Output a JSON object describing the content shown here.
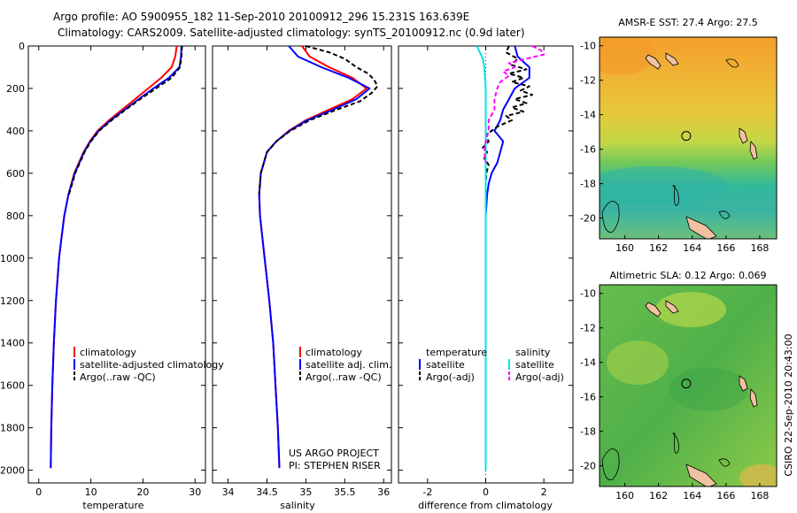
{
  "header": {
    "line1": "Argo profile: AO 5900955_182 11-Sep-2010 20100912_296 15.231S 163.639E",
    "line2": "Climatology: CARS2009. Satellite-adjusted climatology: synTS_20100912.nc (0.9d later)"
  },
  "side_label": "CSIRO 22-Sep-2010 20:43:00",
  "credits": {
    "line1": "US ARGO PROJECT",
    "line2": "PI: STEPHEN RISER"
  },
  "colors": {
    "climatology": "#ff0000",
    "satellite": "#0000ff",
    "argo": "#000000",
    "sat_salt": "#00e5e5",
    "argo_salt": "#ff00ff"
  },
  "chart_data": [
    {
      "id": "temperature",
      "type": "line",
      "xlabel": "temperature",
      "ylabel": "",
      "xlim": [
        -2,
        32
      ],
      "ylim": [
        2060,
        0
      ],
      "xticks": [
        0,
        10,
        20,
        30
      ],
      "yticks": [
        0,
        200,
        400,
        600,
        800,
        1000,
        1200,
        1400,
        1600,
        1800,
        2000
      ],
      "legend": [
        "climatology",
        "satellite-adjusted climatology",
        "Argo(..raw -QC)"
      ],
      "series": [
        {
          "name": "climatology",
          "color": "#ff0000",
          "dash": "",
          "depth": [
            0,
            50,
            100,
            150,
            200,
            250,
            300,
            350,
            400,
            450,
            500,
            600,
            700,
            800,
            900,
            1000,
            1200,
            1400,
            1600,
            1800,
            1990
          ],
          "values": [
            26.5,
            26.2,
            25.5,
            23.5,
            21.0,
            18.5,
            16.0,
            13.5,
            11.3,
            9.8,
            8.6,
            6.8,
            5.7,
            4.9,
            4.4,
            3.9,
            3.3,
            2.9,
            2.6,
            2.4,
            2.3
          ]
        },
        {
          "name": "satellite-adjusted climatology",
          "color": "#0000ff",
          "dash": "",
          "depth": [
            0,
            50,
            100,
            150,
            200,
            250,
            300,
            350,
            400,
            450,
            500,
            600,
            700,
            800,
            900,
            1000,
            1200,
            1400,
            1600,
            1800,
            1990
          ],
          "values": [
            27.4,
            27.3,
            27.0,
            25.0,
            22.0,
            19.2,
            16.5,
            13.8,
            11.5,
            9.9,
            8.7,
            6.9,
            5.7,
            4.9,
            4.4,
            3.9,
            3.3,
            2.9,
            2.6,
            2.4,
            2.3
          ]
        },
        {
          "name": "Argo(..raw -QC)",
          "color": "#000000",
          "dash": "5,3",
          "depth": [
            0,
            50,
            100,
            150,
            200,
            250,
            300,
            350,
            400,
            450,
            500,
            600,
            700
          ],
          "values": [
            27.5,
            27.4,
            27.1,
            25.5,
            22.5,
            19.5,
            16.7,
            14.0,
            11.6,
            10.0,
            8.8,
            7.0,
            5.8
          ]
        }
      ]
    },
    {
      "id": "salinity",
      "type": "line",
      "xlabel": "salinity",
      "ylabel": "",
      "xlim": [
        33.8,
        36.1
      ],
      "ylim": [
        2060,
        0
      ],
      "xticks": [
        34,
        34.5,
        35,
        35.5,
        36
      ],
      "yticks": [],
      "legend": [
        "climatology",
        "satellite adj. clim.",
        "Argo(..raw -QC)"
      ],
      "series": [
        {
          "name": "climatology",
          "color": "#ff0000",
          "dash": "",
          "depth": [
            0,
            50,
            100,
            150,
            200,
            250,
            300,
            350,
            400,
            450,
            500,
            600,
            700,
            800,
            900,
            1000,
            1200,
            1400,
            1600,
            1800,
            1990
          ],
          "values": [
            34.95,
            35.05,
            35.3,
            35.6,
            35.78,
            35.6,
            35.3,
            35.0,
            34.78,
            34.62,
            34.5,
            34.42,
            34.4,
            34.41,
            34.44,
            34.47,
            34.53,
            34.58,
            34.61,
            34.64,
            34.66
          ]
        },
        {
          "name": "satellite adj. clim.",
          "color": "#0000ff",
          "dash": "",
          "depth": [
            0,
            50,
            100,
            150,
            200,
            250,
            300,
            350,
            400,
            450,
            500,
            600,
            700,
            800,
            900,
            1000,
            1200,
            1400,
            1600,
            1800,
            1990
          ],
          "values": [
            34.78,
            34.9,
            35.2,
            35.55,
            35.82,
            35.65,
            35.35,
            35.02,
            34.79,
            34.62,
            34.5,
            34.42,
            34.4,
            34.41,
            34.44,
            34.47,
            34.53,
            34.58,
            34.61,
            34.64,
            34.66
          ]
        },
        {
          "name": "Argo(..raw -QC)",
          "color": "#000000",
          "dash": "5,3",
          "depth": [
            0,
            30,
            60,
            100,
            130,
            160,
            190,
            220,
            260,
            300,
            350,
            400,
            450,
            500,
            600,
            700
          ],
          "values": [
            35.0,
            35.3,
            35.5,
            35.65,
            35.8,
            35.88,
            35.92,
            35.85,
            35.7,
            35.4,
            35.05,
            34.8,
            34.62,
            34.5,
            34.42,
            34.4
          ]
        }
      ]
    },
    {
      "id": "difference",
      "type": "line",
      "xlabel": "difference from climatology",
      "ylabel": "",
      "xlim": [
        -3,
        3
      ],
      "ylim": [
        2060,
        0
      ],
      "xticks": [
        -2,
        0,
        2
      ],
      "yticks": [],
      "legend_temp_title": "temperature",
      "legend_salt_title": "salinity",
      "legend": [
        "satellite",
        "Argo(-adj)",
        "satellite",
        "Argo(-adj)"
      ],
      "series": [
        {
          "name": "temperature satellite",
          "color": "#0000ff",
          "dash": "",
          "depth": [
            0,
            50,
            100,
            150,
            200,
            250,
            300,
            350,
            400,
            450,
            500,
            550,
            600,
            650,
            700,
            800,
            900,
            1000,
            1200,
            1400,
            1600,
            1800,
            2000
          ],
          "values": [
            1.0,
            1.1,
            1.5,
            1.5,
            1.0,
            0.8,
            0.6,
            0.5,
            0.3,
            0.6,
            0.5,
            0.4,
            0.2,
            0.1,
            0.05,
            0.0,
            0.0,
            0.0,
            0.0,
            0.0,
            0.0,
            0.0,
            0.0
          ]
        },
        {
          "name": "temperature Argo(-adj)",
          "color": "#000000",
          "dash": "5,3",
          "depth": [
            0,
            30,
            60,
            90,
            110,
            130,
            150,
            170,
            190,
            210,
            230,
            250,
            270,
            290,
            310,
            330,
            350,
            380,
            400,
            420,
            450,
            480,
            500,
            530,
            560,
            600,
            650,
            700
          ],
          "values": [
            0.8,
            0.7,
            1.1,
            0.9,
            1.4,
            0.8,
            1.3,
            0.9,
            1.5,
            1.2,
            1.6,
            1.0,
            1.4,
            0.9,
            1.3,
            0.7,
            0.9,
            0.4,
            0.2,
            0.0,
            0.1,
            -0.1,
            0.05,
            -0.05,
            0.1,
            0.02,
            0.0,
            0.0
          ]
        },
        {
          "name": "salinity satellite",
          "color": "#00e5e5",
          "dash": "",
          "depth": [
            0,
            30,
            60,
            100,
            150,
            200,
            300,
            400,
            500,
            600,
            700,
            800,
            1000,
            1200,
            1400,
            1600,
            1800,
            2000
          ],
          "values": [
            -0.3,
            -0.2,
            -0.1,
            -0.05,
            -0.02,
            0.0,
            0.0,
            0.0,
            0.0,
            0.0,
            0.0,
            0.0,
            0.0,
            0.0,
            0.0,
            0.0,
            0.0,
            0.0
          ]
        },
        {
          "name": "salinity Argo(-adj)",
          "color": "#ff00ff",
          "dash": "5,3",
          "depth": [
            0,
            20,
            40,
            60,
            80,
            100,
            120,
            140,
            170,
            200,
            250,
            300,
            350,
            400,
            450,
            500,
            550
          ],
          "values": [
            1.6,
            1.9,
            2.0,
            1.4,
            0.8,
            1.0,
            0.6,
            0.8,
            0.5,
            0.4,
            0.3,
            0.3,
            0.1,
            0.1,
            0.0,
            -0.05,
            0.0
          ]
        }
      ]
    },
    {
      "id": "sst_map",
      "type": "heatmap",
      "title": "AMSR-E SST: 27.4 Argo: 27.5",
      "xlim": [
        158.5,
        169
      ],
      "ylim": [
        -21.2,
        -9.5
      ],
      "xticks": [
        160,
        162,
        164,
        166,
        168
      ],
      "yticks": [
        -10,
        -12,
        -14,
        -16,
        -18,
        -20
      ],
      "marker": {
        "lon": 163.639,
        "lat": -15.231
      }
    },
    {
      "id": "sla_map",
      "type": "heatmap",
      "title": "Altimetric SLA: 0.12 Argo: 0.069",
      "xlim": [
        158.5,
        169
      ],
      "ylim": [
        -21.2,
        -9.5
      ],
      "xticks": [
        160,
        162,
        164,
        166,
        168
      ],
      "yticks": [
        -10,
        -12,
        -14,
        -16,
        -18,
        -20
      ],
      "marker": {
        "lon": 163.639,
        "lat": -15.231
      }
    }
  ]
}
